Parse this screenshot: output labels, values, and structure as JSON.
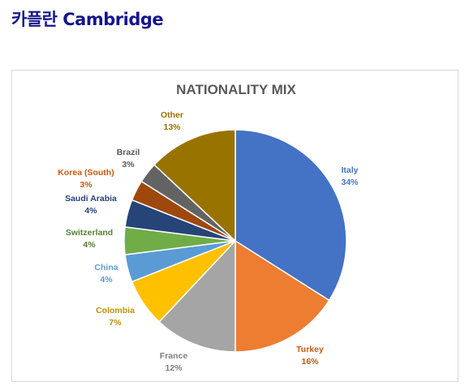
{
  "page": {
    "title": "카플란 Cambridge"
  },
  "chart_data": {
    "type": "pie",
    "title": "NATIONALITY MIX",
    "slices": [
      {
        "label": "Italy",
        "value": 34,
        "value_label": "34%",
        "color": "#4472c4",
        "label_color": "#4472c4"
      },
      {
        "label": "Turkey",
        "value": 16,
        "value_label": "16%",
        "color": "#ed7d31",
        "label_color": "#c55a11"
      },
      {
        "label": "France",
        "value": 12,
        "value_label": "12%",
        "color": "#a5a5a5",
        "label_color": "#7f7f7f"
      },
      {
        "label": "Colombia",
        "value": 7,
        "value_label": "7%",
        "color": "#ffc000",
        "label_color": "#bf9000"
      },
      {
        "label": "China",
        "value": 4,
        "value_label": "4%",
        "color": "#5b9bd5",
        "label_color": "#5b9bd5"
      },
      {
        "label": "Switzerland",
        "value": 4,
        "value_label": "4%",
        "color": "#70ad47",
        "label_color": "#548235"
      },
      {
        "label": "Saudi Arabia",
        "value": 4,
        "value_label": "4%",
        "color": "#264478",
        "label_color": "#264478"
      },
      {
        "label": "Korea (South)",
        "value": 3,
        "value_label": "3%",
        "color": "#9e480e",
        "label_color": "#c55a11"
      },
      {
        "label": "Brazil",
        "value": 3,
        "value_label": "3%",
        "color": "#636363",
        "label_color": "#595959"
      },
      {
        "label": "Other",
        "value": 13,
        "value_label": "13%",
        "color": "#997300",
        "label_color": "#997300"
      }
    ]
  }
}
